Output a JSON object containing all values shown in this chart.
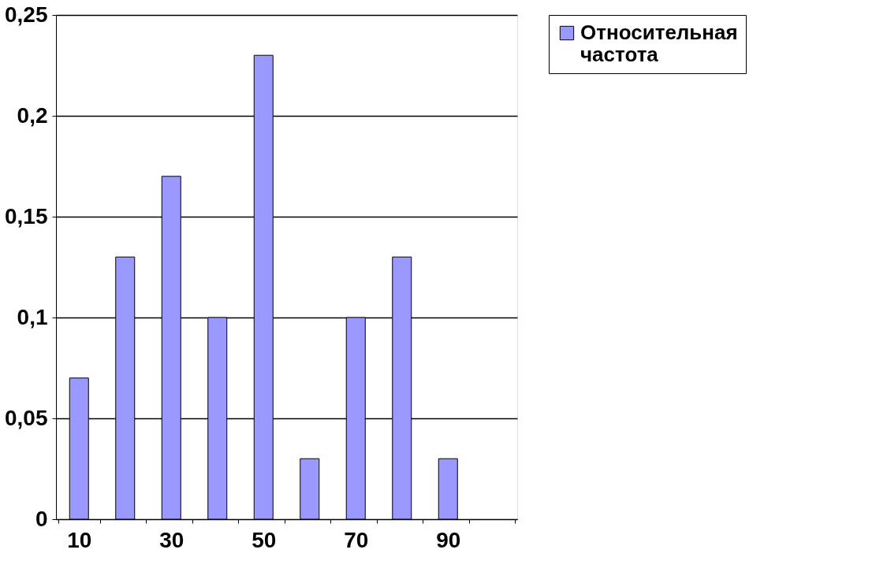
{
  "chart_data": {
    "type": "bar",
    "categories": [
      "10",
      null,
      "30",
      null,
      "50",
      null,
      "70",
      null,
      "90",
      null
    ],
    "series": [
      {
        "name": "Относительная частота",
        "color": "#9999ff",
        "values": [
          0.07,
          0.13,
          0.17,
          0.1,
          0.23,
          0.03,
          0.1,
          0.13,
          0.03,
          null
        ]
      }
    ],
    "ylim": [
      0,
      0.25
    ],
    "yticks": [
      0,
      {
        "value": 0.05,
        "label": "0,05"
      },
      {
        "value": 0.1,
        "label": "0,1"
      },
      {
        "value": 0.15,
        "label": "0,15"
      },
      {
        "value": 0.2,
        "label": "0,2"
      },
      {
        "value": 0.25,
        "label": "0,25"
      }
    ],
    "grid": "y",
    "legend": "right"
  }
}
